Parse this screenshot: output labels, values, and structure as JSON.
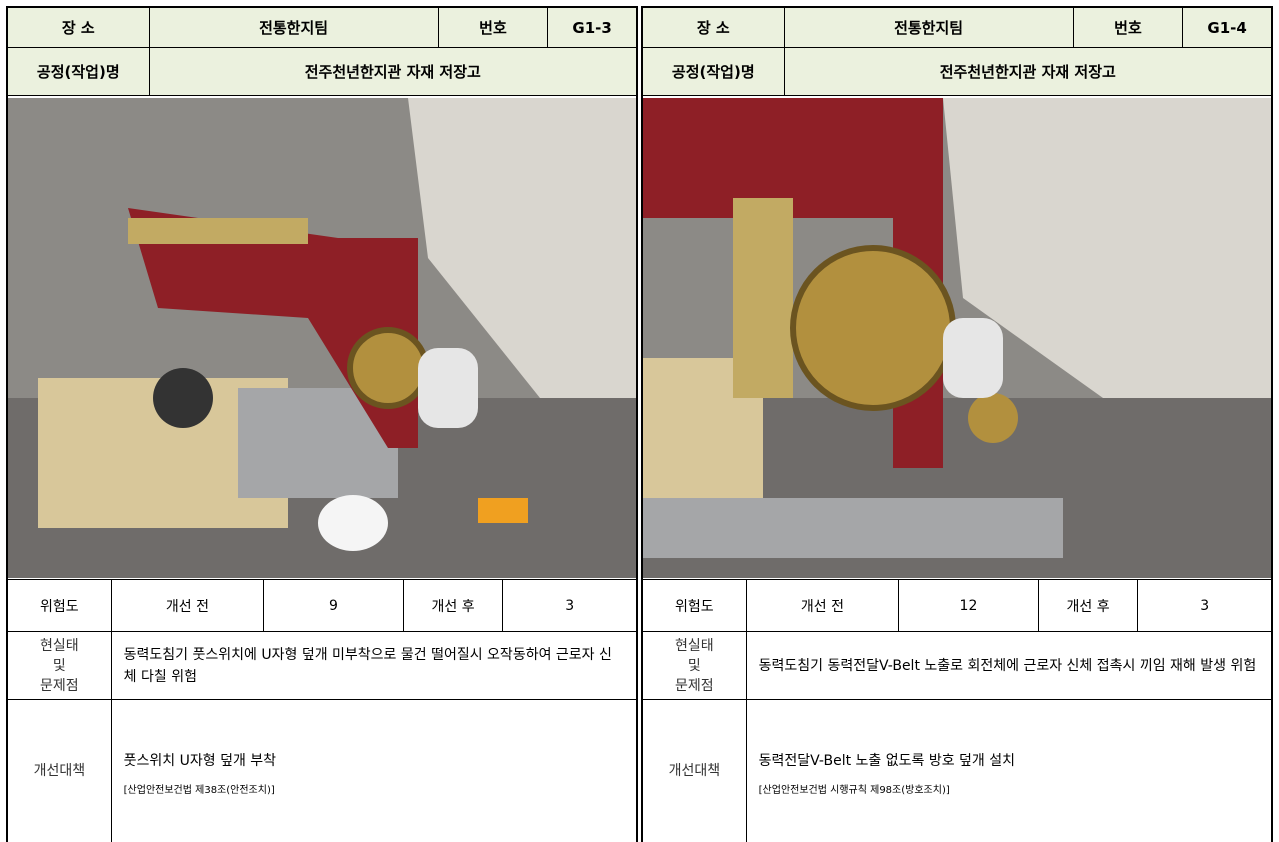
{
  "panels": [
    {
      "place_label": "장  소",
      "place": "전통한지팀",
      "number_label": "번호",
      "number": "G1-3",
      "process_label": "공정(작업)명",
      "process": "전주천년한지관 자재 저장고",
      "risk_label": "위험도",
      "before_label": "개선 전",
      "before": "9",
      "after_label": "개선 후",
      "after": "3",
      "status_label": "현실태\n및\n문제점",
      "status": "동력도침기 풋스위치에 U자형 덮개 미부착으로 물건 떨어질시 오작동하여 근로자 신체 다칠 위험",
      "measure_label": "개선대책",
      "measure": "풋스위치 U자형 덮개 부착",
      "measure_law": "[산업안전보건법 제38조(안전조치)]"
    },
    {
      "place_label": "장  소",
      "place": "전통한지팀",
      "number_label": "번호",
      "number": "G1-4",
      "process_label": "공정(작업)명",
      "process": "전주천년한지관 자재 저장고",
      "risk_label": "위험도",
      "before_label": "개선 전",
      "before": "12",
      "after_label": "개선 후",
      "after": "3",
      "status_label": "현실태\n및\n문제점",
      "status": "동력도침기 동력전달V-Belt 노출로 회전체에 근로자 신체 접촉시 끼임 재해 발생 위험",
      "measure_label": "개선대책",
      "measure": "동력전달V-Belt 노출 없도록 방호 덮개 설치",
      "measure_law": "[산업안전보건법 시행규칙 제98조(방호조치)]"
    }
  ]
}
